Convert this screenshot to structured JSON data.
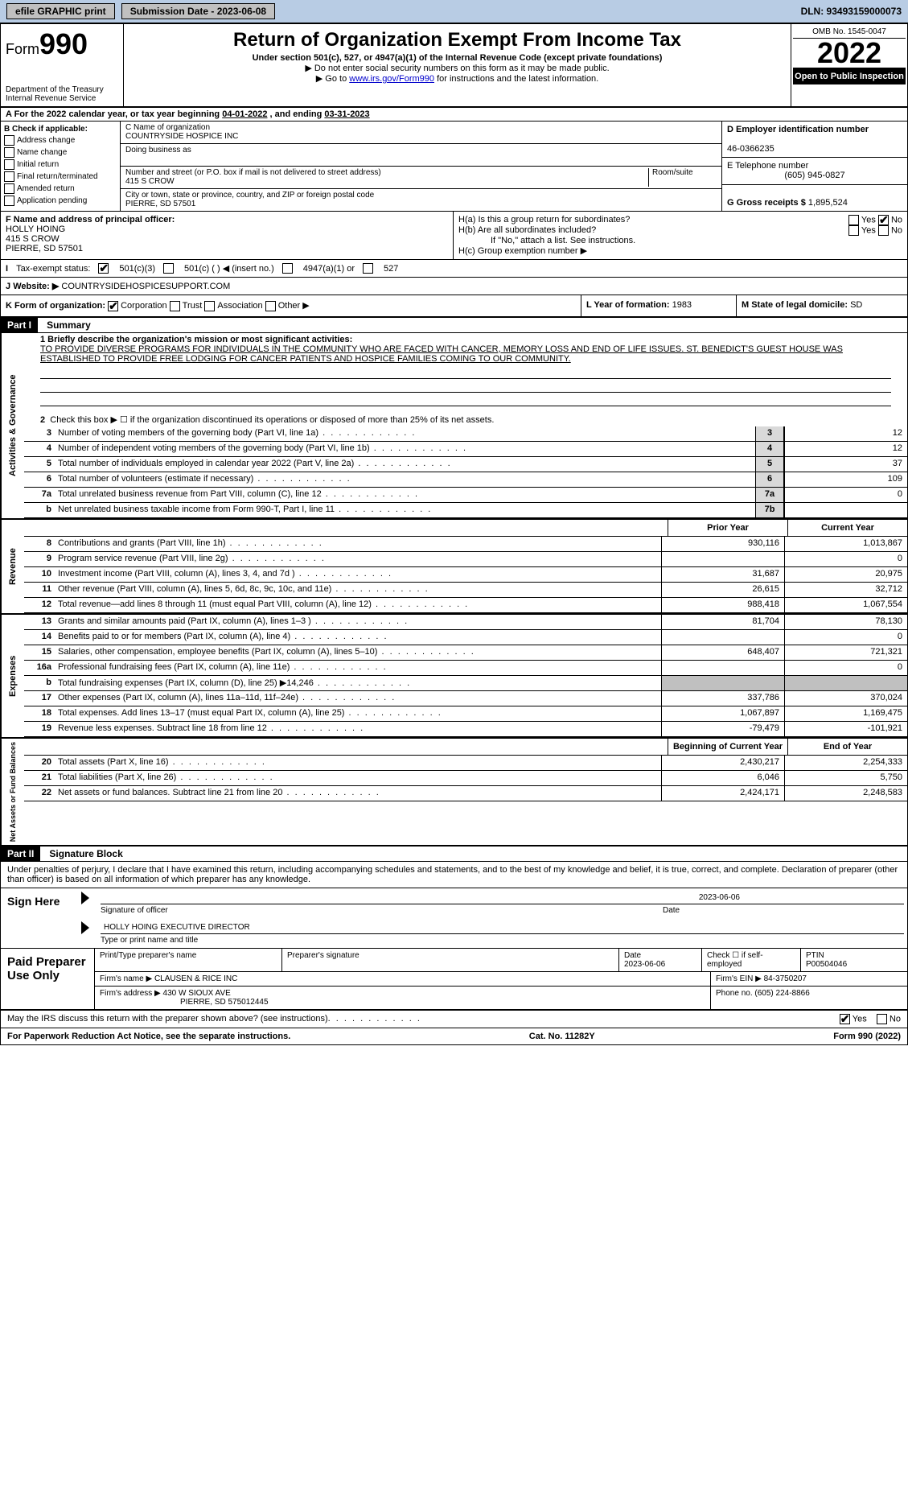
{
  "topbar": {
    "efile_label": "efile GRAPHIC print",
    "submission_label": "Submission Date - 2023-06-08",
    "dln": "DLN: 93493159000073"
  },
  "header": {
    "form_label": "Form",
    "form_number": "990",
    "dept": "Department of the Treasury Internal Revenue Service",
    "title": "Return of Organization Exempt From Income Tax",
    "subtitle": "Under section 501(c), 527, or 4947(a)(1) of the Internal Revenue Code (except private foundations)",
    "note1": "▶ Do not enter social security numbers on this form as it may be made public.",
    "note2_pre": "▶ Go to ",
    "note2_link": "www.irs.gov/Form990",
    "note2_post": " for instructions and the latest information.",
    "omb": "OMB No. 1545-0047",
    "year": "2022",
    "open_public": "Open to Public Inspection"
  },
  "sectionA": {
    "text_pre": "A For the 2022 calendar year, or tax year beginning ",
    "begin": "04-01-2022",
    "mid": " , and ending ",
    "end": "03-31-2023"
  },
  "sectionB": {
    "label": "B Check if applicable:",
    "opts": [
      "Address change",
      "Name change",
      "Initial return",
      "Final return/terminated",
      "Amended return",
      "Application pending"
    ]
  },
  "sectionC": {
    "name_label": "C Name of organization",
    "name": "COUNTRYSIDE HOSPICE INC",
    "dba_label": "Doing business as",
    "dba": "",
    "street_label": "Number and street (or P.O. box if mail is not delivered to street address)",
    "room_label": "Room/suite",
    "street": "415 S CROW",
    "city_label": "City or town, state or province, country, and ZIP or foreign postal code",
    "city": "PIERRE, SD  57501"
  },
  "sectionD": {
    "ein_label": "D Employer identification number",
    "ein": "46-0366235",
    "phone_label": "E Telephone number",
    "phone": "(605) 945-0827",
    "receipts_label": "G Gross receipts $",
    "receipts": "1,895,524"
  },
  "sectionF": {
    "label": "F  Name and address of principal officer:",
    "name": "HOLLY HOING",
    "street": "415 S CROW",
    "city": "PIERRE, SD  57501"
  },
  "sectionH": {
    "ha_label": "H(a)  Is this a group return for subordinates?",
    "hb_label": "H(b)  Are all subordinates included?",
    "hb_note": "If \"No,\" attach a list. See instructions.",
    "hc_label": "H(c)  Group exemption number ▶",
    "yes": "Yes",
    "no": "No"
  },
  "sectionI": {
    "label": "Tax-exempt status:",
    "opt1": "501(c)(3)",
    "opt2": "501(c) (  ) ◀ (insert no.)",
    "opt3": "4947(a)(1) or",
    "opt4": "527"
  },
  "sectionJ": {
    "label": "J",
    "website_label": "Website: ▶",
    "website": "COUNTRYSIDEHOSPICESUPPORT.COM"
  },
  "sectionK": {
    "label": "K Form of organization:",
    "opts": [
      "Corporation",
      "Trust",
      "Association",
      "Other ▶"
    ]
  },
  "sectionL": {
    "label": "L Year of formation:",
    "value": "1983"
  },
  "sectionM": {
    "label": "M State of legal domicile:",
    "value": "SD"
  },
  "part1": {
    "header": "Part I",
    "title": "Summary",
    "line1_label": "1  Briefly describe the organization's mission or most significant activities:",
    "mission": "TO PROVIDE DIVERSE PROGRAMS FOR INDIVIDUALS IN THE COMMUNITY WHO ARE FACED WITH CANCER, MEMORY LOSS AND END OF LIFE ISSUES. ST. BENEDICT'S GUEST HOUSE WAS ESTABLISHED TO PROVIDE FREE LODGING FOR CANCER PATIENTS AND HOSPICE FAMILIES COMING TO OUR COMMUNITY.",
    "line2": "Check this box ▶ ☐  if the organization discontinued its operations or disposed of more than 25% of its net assets."
  },
  "side_labels": {
    "governance": "Activities & Governance",
    "revenue": "Revenue",
    "expenses": "Expenses",
    "netassets": "Net Assets or Fund Balances"
  },
  "governance_rows": [
    {
      "num": "3",
      "desc": "Number of voting members of the governing body (Part VI, line 1a)",
      "cell": "3",
      "val": "12"
    },
    {
      "num": "4",
      "desc": "Number of independent voting members of the governing body (Part VI, line 1b)",
      "cell": "4",
      "val": "12"
    },
    {
      "num": "5",
      "desc": "Total number of individuals employed in calendar year 2022 (Part V, line 2a)",
      "cell": "5",
      "val": "37"
    },
    {
      "num": "6",
      "desc": "Total number of volunteers (estimate if necessary)",
      "cell": "6",
      "val": "109"
    },
    {
      "num": "7a",
      "desc": "Total unrelated business revenue from Part VIII, column (C), line 12",
      "cell": "7a",
      "val": "0"
    },
    {
      "num": "b",
      "desc": "Net unrelated business taxable income from Form 990-T, Part I, line 11",
      "cell": "7b",
      "val": ""
    }
  ],
  "col_headers": {
    "prior": "Prior Year",
    "current": "Current Year",
    "begin": "Beginning of Current Year",
    "end": "End of Year"
  },
  "revenue_rows": [
    {
      "num": "8",
      "desc": "Contributions and grants (Part VIII, line 1h)",
      "prior": "930,116",
      "current": "1,013,867"
    },
    {
      "num": "9",
      "desc": "Program service revenue (Part VIII, line 2g)",
      "prior": "",
      "current": "0"
    },
    {
      "num": "10",
      "desc": "Investment income (Part VIII, column (A), lines 3, 4, and 7d )",
      "prior": "31,687",
      "current": "20,975"
    },
    {
      "num": "11",
      "desc": "Other revenue (Part VIII, column (A), lines 5, 6d, 8c, 9c, 10c, and 11e)",
      "prior": "26,615",
      "current": "32,712"
    },
    {
      "num": "12",
      "desc": "Total revenue—add lines 8 through 11 (must equal Part VIII, column (A), line 12)",
      "prior": "988,418",
      "current": "1,067,554"
    }
  ],
  "expense_rows": [
    {
      "num": "13",
      "desc": "Grants and similar amounts paid (Part IX, column (A), lines 1–3 )",
      "prior": "81,704",
      "current": "78,130"
    },
    {
      "num": "14",
      "desc": "Benefits paid to or for members (Part IX, column (A), line 4)",
      "prior": "",
      "current": "0"
    },
    {
      "num": "15",
      "desc": "Salaries, other compensation, employee benefits (Part IX, column (A), lines 5–10)",
      "prior": "648,407",
      "current": "721,321"
    },
    {
      "num": "16a",
      "desc": "Professional fundraising fees (Part IX, column (A), line 11e)",
      "prior": "",
      "current": "0"
    },
    {
      "num": "b",
      "desc": "Total fundraising expenses (Part IX, column (D), line 25) ▶14,246",
      "prior": "GRAY",
      "current": "GRAY"
    },
    {
      "num": "17",
      "desc": "Other expenses (Part IX, column (A), lines 11a–11d, 11f–24e)",
      "prior": "337,786",
      "current": "370,024"
    },
    {
      "num": "18",
      "desc": "Total expenses. Add lines 13–17 (must equal Part IX, column (A), line 25)",
      "prior": "1,067,897",
      "current": "1,169,475"
    },
    {
      "num": "19",
      "desc": "Revenue less expenses. Subtract line 18 from line 12",
      "prior": "-79,479",
      "current": "-101,921"
    }
  ],
  "netassets_rows": [
    {
      "num": "20",
      "desc": "Total assets (Part X, line 16)",
      "prior": "2,430,217",
      "current": "2,254,333"
    },
    {
      "num": "21",
      "desc": "Total liabilities (Part X, line 26)",
      "prior": "6,046",
      "current": "5,750"
    },
    {
      "num": "22",
      "desc": "Net assets or fund balances. Subtract line 21 from line 20",
      "prior": "2,424,171",
      "current": "2,248,583"
    }
  ],
  "part2": {
    "header": "Part II",
    "title": "Signature Block",
    "declaration": "Under penalties of perjury, I declare that I have examined this return, including accompanying schedules and statements, and to the best of my knowledge and belief, it is true, correct, and complete. Declaration of preparer (other than officer) is based on all information of which preparer has any knowledge."
  },
  "sign": {
    "label": "Sign Here",
    "sig_label": "Signature of officer",
    "date_label": "Date",
    "date": "2023-06-06",
    "name": "HOLLY HOING  EXECUTIVE DIRECTOR",
    "name_label": "Type or print name and title"
  },
  "preparer": {
    "label": "Paid Preparer Use Only",
    "name_label": "Print/Type preparer's name",
    "sig_label": "Preparer's signature",
    "date_label": "Date",
    "date": "2023-06-06",
    "self_label": "Check ☐ if self-employed",
    "ptin_label": "PTIN",
    "ptin": "P00504046",
    "firm_name_label": "Firm's name    ▶",
    "firm_name": "CLAUSEN & RICE INC",
    "firm_ein_label": "Firm's EIN ▶",
    "firm_ein": "84-3750207",
    "firm_addr_label": "Firm's address ▶",
    "firm_addr1": "430 W SIOUX AVE",
    "firm_addr2": "PIERRE, SD  575012445",
    "phone_label": "Phone no.",
    "phone": "(605) 224-8866"
  },
  "footer": {
    "discuss": "May the IRS discuss this return with the preparer shown above? (see instructions)",
    "yes": "Yes",
    "no": "No",
    "paperwork": "For Paperwork Reduction Act Notice, see the separate instructions.",
    "cat": "Cat. No. 11282Y",
    "form": "Form 990 (2022)"
  }
}
